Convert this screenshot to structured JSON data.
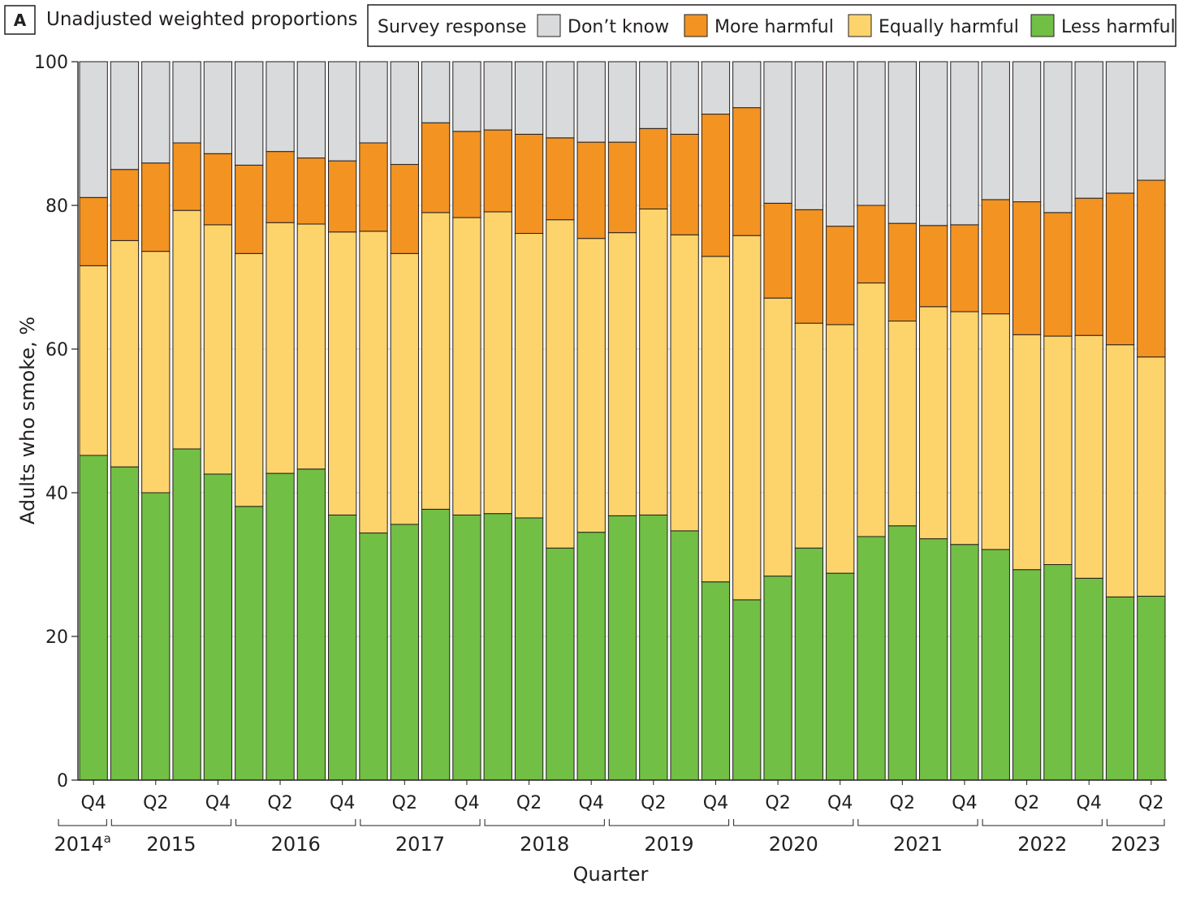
{
  "panel": {
    "letter": "A",
    "title": "Unadjusted weighted proportions"
  },
  "legend": {
    "title": "Survey response",
    "items": [
      {
        "key": "dont_know",
        "label": "Don’t know",
        "color": "#d9dadb"
      },
      {
        "key": "more",
        "label": "More harmful",
        "color": "#f39322"
      },
      {
        "key": "equal",
        "label": "Equally harmful",
        "color": "#fdd46c"
      },
      {
        "key": "less",
        "label": "Less harmful",
        "color": "#71bf44"
      }
    ]
  },
  "chart_data": {
    "type": "bar",
    "stacked": true,
    "title": "Unadjusted weighted proportions",
    "xlabel": "Quarter",
    "ylabel": "Adults who smoke, %",
    "ylim": [
      0,
      100
    ],
    "yticks": [
      0,
      20,
      40,
      60,
      80,
      100
    ],
    "grid": true,
    "legend_position": "top",
    "categories": [
      "2014 Q4",
      "2015 Q1",
      "2015 Q2",
      "2015 Q3",
      "2015 Q4",
      "2016 Q1",
      "2016 Q2",
      "2016 Q3",
      "2016 Q4",
      "2017 Q1",
      "2017 Q2",
      "2017 Q3",
      "2017 Q4",
      "2018 Q1",
      "2018 Q2",
      "2018 Q3",
      "2018 Q4",
      "2019 Q1",
      "2019 Q2",
      "2019 Q3",
      "2019 Q4",
      "2020 Q1",
      "2020 Q2",
      "2020 Q3",
      "2020 Q4",
      "2021 Q1",
      "2021 Q2",
      "2021 Q3",
      "2021 Q4",
      "2022 Q1",
      "2022 Q2",
      "2022 Q3",
      "2022 Q4",
      "2023 Q1",
      "2023 Q2"
    ],
    "tick_labels": [
      {
        "index": 0,
        "label": "Q4"
      },
      {
        "index": 2,
        "label": "Q2"
      },
      {
        "index": 4,
        "label": "Q4"
      },
      {
        "index": 6,
        "label": "Q2"
      },
      {
        "index": 8,
        "label": "Q4"
      },
      {
        "index": 10,
        "label": "Q2"
      },
      {
        "index": 12,
        "label": "Q4"
      },
      {
        "index": 14,
        "label": "Q2"
      },
      {
        "index": 16,
        "label": "Q4"
      },
      {
        "index": 18,
        "label": "Q2"
      },
      {
        "index": 20,
        "label": "Q4"
      },
      {
        "index": 22,
        "label": "Q2"
      },
      {
        "index": 24,
        "label": "Q4"
      },
      {
        "index": 26,
        "label": "Q2"
      },
      {
        "index": 28,
        "label": "Q4"
      },
      {
        "index": 30,
        "label": "Q2"
      },
      {
        "index": 32,
        "label": "Q4"
      },
      {
        "index": 34,
        "label": "Q2"
      }
    ],
    "years": [
      {
        "label": "2014",
        "sup": "a",
        "start": 0,
        "end": 0
      },
      {
        "label": "2015",
        "start": 1,
        "end": 4
      },
      {
        "label": "2016",
        "start": 5,
        "end": 8
      },
      {
        "label": "2017",
        "start": 9,
        "end": 12
      },
      {
        "label": "2018",
        "start": 13,
        "end": 16
      },
      {
        "label": "2019",
        "start": 17,
        "end": 20
      },
      {
        "label": "2020",
        "start": 21,
        "end": 24
      },
      {
        "label": "2021",
        "start": 25,
        "end": 28
      },
      {
        "label": "2022",
        "start": 29,
        "end": 32
      },
      {
        "label": "2023",
        "start": 33,
        "end": 34
      }
    ],
    "series": [
      {
        "name": "Less harmful",
        "key": "less",
        "values": [
          45.2,
          43.6,
          40.0,
          46.1,
          42.6,
          38.1,
          42.7,
          43.3,
          36.9,
          34.4,
          35.6,
          37.7,
          36.9,
          37.1,
          36.5,
          32.3,
          34.5,
          36.8,
          36.9,
          34.7,
          27.6,
          25.1,
          28.4,
          32.3,
          28.8,
          33.9,
          35.4,
          33.6,
          32.8,
          32.1,
          29.3,
          30.0,
          28.1,
          25.5,
          25.6
        ]
      },
      {
        "name": "Equally harmful",
        "key": "equal",
        "values": [
          26.4,
          31.5,
          33.6,
          33.2,
          34.7,
          35.2,
          34.9,
          34.1,
          39.4,
          42.0,
          37.7,
          41.3,
          41.4,
          42.0,
          39.6,
          45.7,
          40.9,
          39.4,
          42.6,
          41.2,
          45.3,
          50.7,
          38.7,
          31.3,
          34.6,
          35.3,
          28.5,
          32.3,
          32.4,
          32.8,
          32.7,
          31.8,
          33.8,
          35.1,
          33.3
        ]
      },
      {
        "name": "More harmful",
        "key": "more",
        "values": [
          9.5,
          9.9,
          12.3,
          9.4,
          9.9,
          12.3,
          9.9,
          9.2,
          9.9,
          12.3,
          12.4,
          12.5,
          12.0,
          11.4,
          13.8,
          11.4,
          13.4,
          12.6,
          11.2,
          14.0,
          19.8,
          17.8,
          13.2,
          15.8,
          13.7,
          10.8,
          13.6,
          11.3,
          12.1,
          15.9,
          18.5,
          17.2,
          19.1,
          21.1,
          24.6
        ]
      },
      {
        "name": "Don’t know",
        "key": "dont_know",
        "values": [
          18.9,
          15.0,
          14.1,
          11.3,
          12.8,
          14.4,
          12.5,
          13.4,
          13.8,
          11.3,
          14.3,
          8.5,
          9.7,
          9.5,
          10.1,
          10.6,
          11.2,
          11.2,
          9.3,
          10.1,
          7.3,
          6.4,
          19.7,
          20.6,
          22.9,
          20.0,
          22.5,
          22.8,
          22.7,
          19.2,
          19.5,
          21.0,
          19.0,
          18.3,
          16.5
        ]
      }
    ]
  }
}
